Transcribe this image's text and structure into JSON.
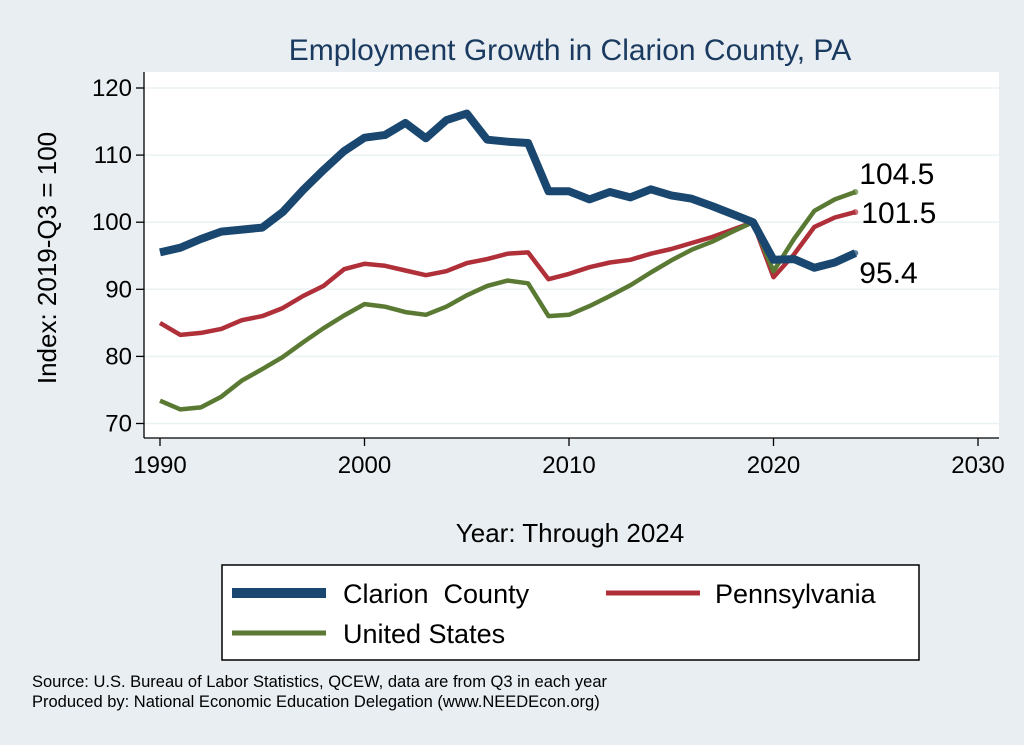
{
  "chart_data": {
    "type": "line",
    "title": "Employment Growth in Clarion County, PA",
    "xlabel": "Year: Through 2024",
    "ylabel": "Index: 2019-Q3 = 100",
    "xlim": [
      1990,
      2030
    ],
    "ylim": [
      68,
      122
    ],
    "xticks": [
      1990,
      2000,
      2010,
      2020,
      2030
    ],
    "yticks": [
      70,
      80,
      90,
      100,
      110,
      120
    ],
    "grid": true,
    "legend_position": "bottom",
    "x": [
      1990,
      1991,
      1992,
      1993,
      1994,
      1995,
      1996,
      1997,
      1998,
      1999,
      2000,
      2001,
      2002,
      2003,
      2004,
      2005,
      2006,
      2007,
      2008,
      2009,
      2010,
      2011,
      2012,
      2013,
      2014,
      2015,
      2016,
      2017,
      2018,
      2019,
      2020,
      2021,
      2022,
      2023,
      2024
    ],
    "series": [
      {
        "name": "Clarion  County",
        "color": "#1a476f",
        "stroke": "thick",
        "values": [
          95.5,
          96.2,
          97.5,
          98.6,
          98.9,
          99.2,
          101.5,
          104.8,
          107.8,
          110.6,
          112.6,
          113.0,
          114.8,
          112.5,
          115.2,
          116.2,
          112.3,
          112.0,
          111.8,
          104.6,
          104.6,
          103.4,
          104.5,
          103.7,
          104.9,
          104.0,
          103.5,
          102.4,
          101.2,
          100.0,
          94.4,
          94.5,
          93.2,
          94.0,
          95.4
        ],
        "end_label": "95.4"
      },
      {
        "name": "Pennsylvania",
        "color": "#b0303a",
        "stroke": "medium",
        "values": [
          85.0,
          83.2,
          83.5,
          84.1,
          85.4,
          86.0,
          87.2,
          89.0,
          90.5,
          93.0,
          93.8,
          93.5,
          92.8,
          92.1,
          92.7,
          93.9,
          94.5,
          95.3,
          95.5,
          91.5,
          92.3,
          93.3,
          94.0,
          94.4,
          95.3,
          96.0,
          96.9,
          97.8,
          98.9,
          100.0,
          91.8,
          95.2,
          99.3,
          100.7,
          101.5
        ],
        "end_label": "101.5"
      },
      {
        "name": "United States",
        "color": "#5a7a34",
        "stroke": "medium",
        "values": [
          73.4,
          72.1,
          72.4,
          74.0,
          76.4,
          78.1,
          79.9,
          82.1,
          84.2,
          86.1,
          87.8,
          87.4,
          86.6,
          86.2,
          87.4,
          89.1,
          90.5,
          91.3,
          90.9,
          86.0,
          86.2,
          87.5,
          89.0,
          90.6,
          92.5,
          94.3,
          95.9,
          97.1,
          98.6,
          100.0,
          92.7,
          97.5,
          101.7,
          103.4,
          104.5
        ],
        "end_label": "104.5"
      }
    ]
  },
  "source_lines": [
    "Source: U.S. Bureau of Labor Statistics, QCEW, data are from Q3 in each year",
    "Produced by: National Economic Education Delegation (www.NEEDEcon.org)"
  ]
}
